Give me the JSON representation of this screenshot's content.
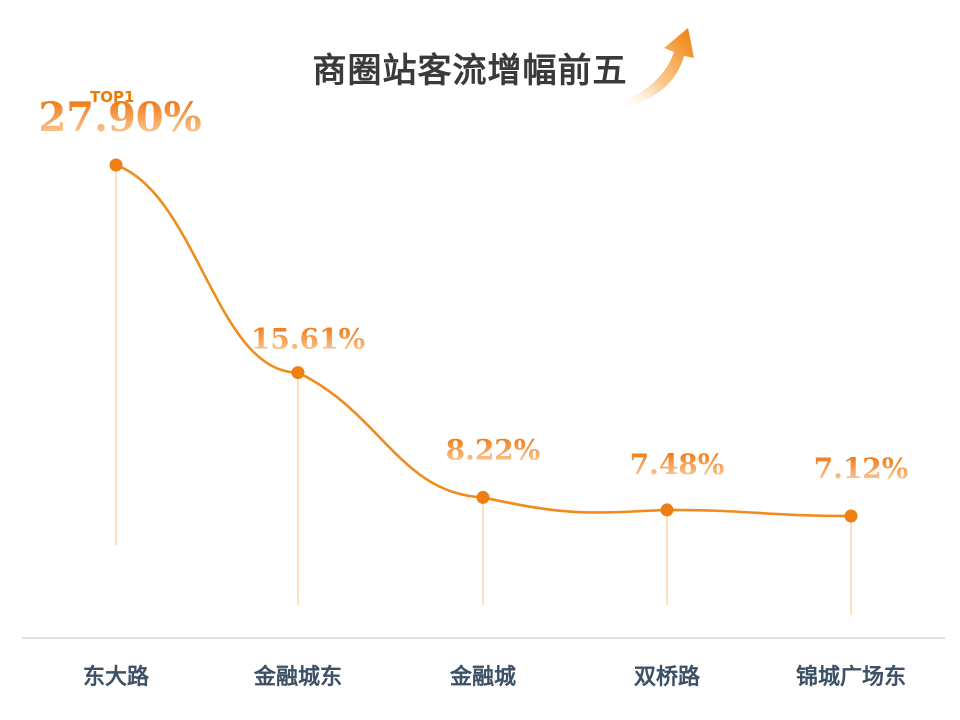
{
  "title": "商圈站客流增幅前五",
  "badge": "TOP1",
  "colors": {
    "line": "#f08c1e",
    "dot": "#ee7f12",
    "label_top": "#ee6a00",
    "label_bottom": "#fbd8ac",
    "category": "#3c5066",
    "title": "#3a3a3a",
    "baseline": "#c9cfd6"
  },
  "chart_data": {
    "type": "line",
    "title": "商圈站客流增幅前五",
    "categories": [
      "东大路",
      "金融城东",
      "金融城",
      "双桥路",
      "锦城广场东"
    ],
    "values": [
      27.9,
      15.61,
      8.22,
      7.48,
      7.12
    ],
    "value_labels": [
      "27.90%",
      "15.61%",
      "8.22%",
      "7.48%",
      "7.12%"
    ],
    "unit": "%",
    "xlabel": "",
    "ylabel": "",
    "grid": false,
    "legend": "none"
  }
}
